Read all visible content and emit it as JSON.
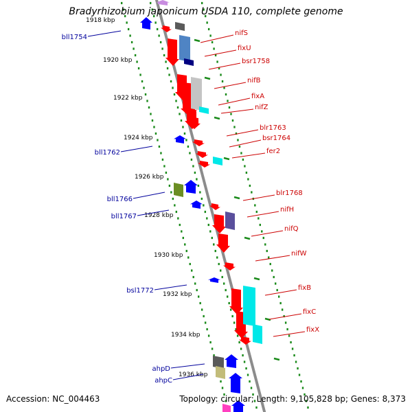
{
  "title": "Bradyrhizobium japonicum USDA 110, complete genome",
  "footer": {
    "accession": "Accession: NC_004463",
    "topology": "Topology: circular; Length: 9,105,828 bp; Genes: 8,373"
  },
  "colors": {
    "backbone": "#8c8c8c",
    "tick_dots": "#1a8a1a",
    "forward_gene": "#ff0000",
    "reverse_gene": "#0000ff",
    "forward_label": "#cc0000",
    "reverse_label": "#00009c"
  },
  "scale_labels": [
    "1918 kbp",
    "1920 kbp",
    "1922 kbp",
    "1924 kbp",
    "1926 kbp",
    "1928 kbp",
    "1930 kbp",
    "1932 kbp",
    "1934 kbp",
    "1936 kbp"
  ],
  "forward_genes": [
    {
      "label": "nifS",
      "color": "#ff0000"
    },
    {
      "label": "fixU",
      "color": "#ff0000"
    },
    {
      "label": "bsr1758",
      "color": "#ff0000"
    },
    {
      "label": "nifB",
      "color": "#ff0000"
    },
    {
      "label": "fixA",
      "color": "#ff0000"
    },
    {
      "label": "nifZ",
      "color": "#ff0000"
    },
    {
      "label": "blr1763",
      "color": "#ff0000"
    },
    {
      "label": "bsr1764",
      "color": "#ff0000"
    },
    {
      "label": "fer2",
      "color": "#ff0000"
    },
    {
      "label": "blr1768",
      "color": "#ff0000"
    },
    {
      "label": "nifH",
      "color": "#ff0000"
    },
    {
      "label": "nifQ",
      "color": "#ff0000"
    },
    {
      "label": "nifW",
      "color": "#ff0000"
    },
    {
      "label": "fixB",
      "color": "#ff0000"
    },
    {
      "label": "fixC",
      "color": "#ff0000"
    },
    {
      "label": "fixX",
      "color": "#ff0000"
    }
  ],
  "reverse_genes": [
    {
      "label": "bll1754",
      "color": "#0000ff"
    },
    {
      "label": "bll1762",
      "color": "#0000ff"
    },
    {
      "label": "bll1766",
      "color": "#0000ff"
    },
    {
      "label": "bll1767",
      "color": "#0000ff"
    },
    {
      "label": "bsl1772",
      "color": "#0000ff"
    },
    {
      "label": "ahpD",
      "color": "#0000ff"
    },
    {
      "label": "ahpC",
      "color": "#0000ff"
    }
  ],
  "cog_colors": {
    "grey": "#5a5a5a",
    "steel_blue": "#4f84c4",
    "navy": "#000080",
    "light_grey": "#c4c4c4",
    "cyan": "#00e8e8",
    "olive": "#6b8e23",
    "slate": "#5a4f9c",
    "khaki": "#c2bc7a"
  }
}
